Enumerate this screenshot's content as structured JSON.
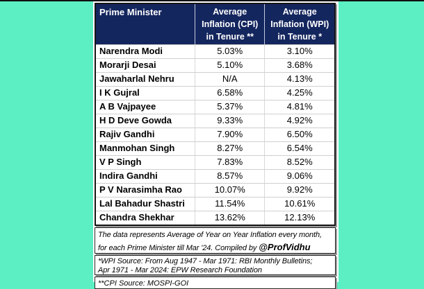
{
  "colors": {
    "background_teal": "#5CEFC4",
    "header_navy": "#14265E",
    "header_text": "#FFFFFF",
    "body_text": "#000000",
    "gridline_gray": "#CFCFCF"
  },
  "table": {
    "header": {
      "col1": "Prime Minister",
      "col2_lines": [
        "Average",
        "Inflation (CPI)",
        "in Tenure **"
      ],
      "col3_lines": [
        "Average",
        "Inflation (WPI)",
        "in Tenure *"
      ]
    }
  },
  "notes": {
    "data_note_line1": "The data represents Average of Year on Year Inflation every month,",
    "data_note_line2": "for each Prime Minister till Mar '24. Compiled by ",
    "compiler_handle": "@ProfVidhu",
    "wpi_source_line1": "*WPI Source: From Aug 1947 - Mar 1971: RBI Monthly Bulletins;",
    "wpi_source_line2": "Apr 1971 - Mar 2024: EPW Research Foundation",
    "cpi_source": "**CPI Source: MOSPI-GOI"
  },
  "chart_data": {
    "type": "table",
    "title": "Average Inflation (CPI & WPI) in Tenure by Prime Minister",
    "columns": [
      "Prime Minister",
      "Average Inflation (CPI) in Tenure **",
      "Average Inflation (WPI) in Tenure *"
    ],
    "rows": [
      [
        "Narendra Modi",
        "5.03%",
        "3.10%"
      ],
      [
        "Morarji Desai",
        "5.10%",
        "3.68%"
      ],
      [
        "Jawaharlal Nehru",
        "N/A",
        "4.13%"
      ],
      [
        "I K Gujral",
        "6.58%",
        "4.25%"
      ],
      [
        "A B Vajpayee",
        "5.37%",
        "4.81%"
      ],
      [
        "H D Deve Gowda",
        "9.33%",
        "4.92%"
      ],
      [
        "Rajiv Gandhi",
        "7.90%",
        "6.50%"
      ],
      [
        "Manmohan Singh",
        "8.27%",
        "6.54%"
      ],
      [
        "V P Singh",
        "7.83%",
        "8.52%"
      ],
      [
        "Indira Gandhi",
        "8.57%",
        "9.06%"
      ],
      [
        "P V Narasimha Rao",
        "10.07%",
        "9.92%"
      ],
      [
        "Lal Bahadur Shastri",
        "11.54%",
        "10.61%"
      ],
      [
        "Chandra Shekhar",
        "13.62%",
        "12.13%"
      ]
    ]
  }
}
